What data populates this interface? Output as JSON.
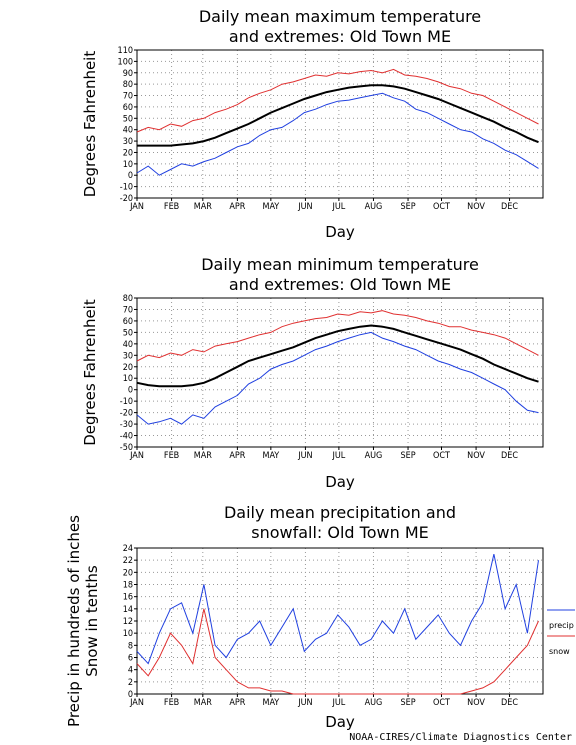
{
  "chart_data": [
    {
      "type": "line",
      "title": [
        "Daily mean maximum temperature",
        "and extremes: Old Town ME"
      ],
      "xlabel": "Day",
      "ylabel": [
        "Degrees Fahrenheit"
      ],
      "x": [
        1,
        11,
        21,
        31,
        41,
        51,
        61,
        71,
        81,
        91,
        101,
        111,
        121,
        131,
        141,
        151,
        161,
        171,
        181,
        191,
        201,
        211,
        221,
        231,
        241,
        251,
        261,
        271,
        281,
        291,
        301,
        311,
        321,
        331,
        341,
        351,
        361
      ],
      "xlim": [
        1,
        365
      ],
      "xticks": [
        {
          "value": 1,
          "label": "JAN"
        },
        {
          "value": 32,
          "label": "FEB"
        },
        {
          "value": 60,
          "label": "MAR"
        },
        {
          "value": 91,
          "label": "APR"
        },
        {
          "value": 121,
          "label": "MAY"
        },
        {
          "value": 152,
          "label": "JUN"
        },
        {
          "value": 182,
          "label": "JUL"
        },
        {
          "value": 213,
          "label": "AUG"
        },
        {
          "value": 244,
          "label": "SEP"
        },
        {
          "value": 274,
          "label": "OCT"
        },
        {
          "value": 305,
          "label": "NOV"
        },
        {
          "value": 335,
          "label": "DEC"
        }
      ],
      "ylim": [
        -20,
        110
      ],
      "yticks": [
        -20,
        -10,
        0,
        10,
        20,
        30,
        40,
        50,
        60,
        70,
        80,
        90,
        100,
        110
      ],
      "grid": true,
      "series": [
        {
          "color": "#e03030",
          "values": [
            38,
            42,
            40,
            45,
            43,
            48,
            50,
            55,
            58,
            62,
            68,
            72,
            75,
            80,
            82,
            85,
            88,
            87,
            90,
            89,
            91,
            92,
            90,
            93,
            88,
            87,
            85,
            82,
            78,
            76,
            72,
            70,
            65,
            60,
            55,
            50,
            45
          ]
        },
        {
          "color": "#000000",
          "values": [
            26,
            26,
            26,
            26,
            27,
            28,
            30,
            33,
            37,
            41,
            45,
            50,
            55,
            59,
            63,
            67,
            70,
            73,
            75,
            77,
            78,
            79,
            79,
            78,
            76,
            73,
            70,
            67,
            63,
            59,
            55,
            51,
            47,
            42,
            38,
            33,
            29
          ]
        },
        {
          "color": "#2040e0",
          "values": [
            2,
            8,
            0,
            5,
            10,
            8,
            12,
            15,
            20,
            25,
            28,
            35,
            40,
            42,
            48,
            55,
            58,
            62,
            65,
            66,
            68,
            70,
            72,
            68,
            65,
            58,
            55,
            50,
            45,
            40,
            38,
            32,
            28,
            22,
            18,
            12,
            6
          ]
        }
      ]
    },
    {
      "type": "line",
      "title": [
        "Daily mean minimum temperature",
        "and extremes: Old Town ME"
      ],
      "xlabel": "Day",
      "ylabel": [
        "Degrees Fahrenheit"
      ],
      "x": [
        1,
        11,
        21,
        31,
        41,
        51,
        61,
        71,
        81,
        91,
        101,
        111,
        121,
        131,
        141,
        151,
        161,
        171,
        181,
        191,
        201,
        211,
        221,
        231,
        241,
        251,
        261,
        271,
        281,
        291,
        301,
        311,
        321,
        331,
        341,
        351,
        361
      ],
      "xlim": [
        1,
        365
      ],
      "xticks": [
        {
          "value": 1,
          "label": "JAN"
        },
        {
          "value": 32,
          "label": "FEB"
        },
        {
          "value": 60,
          "label": "MAR"
        },
        {
          "value": 91,
          "label": "APR"
        },
        {
          "value": 121,
          "label": "MAY"
        },
        {
          "value": 152,
          "label": "JUN"
        },
        {
          "value": 182,
          "label": "JUL"
        },
        {
          "value": 213,
          "label": "AUG"
        },
        {
          "value": 244,
          "label": "SEP"
        },
        {
          "value": 274,
          "label": "OCT"
        },
        {
          "value": 305,
          "label": "NOV"
        },
        {
          "value": 335,
          "label": "DEC"
        }
      ],
      "ylim": [
        -50,
        80
      ],
      "yticks": [
        -50,
        -40,
        -30,
        -20,
        -10,
        0,
        10,
        20,
        30,
        40,
        50,
        60,
        70,
        80
      ],
      "grid": true,
      "series": [
        {
          "color": "#e03030",
          "values": [
            25,
            30,
            28,
            32,
            30,
            35,
            33,
            38,
            40,
            42,
            45,
            48,
            50,
            55,
            58,
            60,
            62,
            63,
            66,
            65,
            68,
            67,
            69,
            66,
            65,
            63,
            60,
            58,
            55,
            55,
            52,
            50,
            48,
            45,
            40,
            35,
            30
          ]
        },
        {
          "color": "#000000",
          "values": [
            6,
            4,
            3,
            3,
            3,
            4,
            6,
            10,
            15,
            20,
            25,
            28,
            31,
            34,
            37,
            41,
            45,
            48,
            51,
            53,
            55,
            56,
            55,
            53,
            50,
            47,
            44,
            41,
            38,
            35,
            31,
            27,
            22,
            18,
            14,
            10,
            7
          ]
        },
        {
          "color": "#2040e0",
          "values": [
            -22,
            -30,
            -28,
            -25,
            -30,
            -22,
            -25,
            -15,
            -10,
            -5,
            5,
            10,
            18,
            22,
            25,
            30,
            35,
            38,
            42,
            45,
            48,
            50,
            45,
            42,
            38,
            35,
            30,
            25,
            22,
            18,
            15,
            10,
            5,
            0,
            -10,
            -18,
            -20
          ]
        }
      ]
    },
    {
      "type": "line",
      "title": [
        "Daily mean precipitation and",
        "snowfall: Old Town ME"
      ],
      "xlabel": "Day",
      "ylabel": [
        "Precip in hundreds of inches",
        "Snow in tenths"
      ],
      "x": [
        1,
        11,
        21,
        31,
        41,
        51,
        61,
        71,
        81,
        91,
        101,
        111,
        121,
        131,
        141,
        151,
        161,
        171,
        181,
        191,
        201,
        211,
        221,
        231,
        241,
        251,
        261,
        271,
        281,
        291,
        301,
        311,
        321,
        331,
        341,
        351,
        361
      ],
      "xlim": [
        1,
        365
      ],
      "xticks": [
        {
          "value": 1,
          "label": "JAN"
        },
        {
          "value": 32,
          "label": "FEB"
        },
        {
          "value": 60,
          "label": "MAR"
        },
        {
          "value": 91,
          "label": "APR"
        },
        {
          "value": 121,
          "label": "MAY"
        },
        {
          "value": 152,
          "label": "JUN"
        },
        {
          "value": 182,
          "label": "JUL"
        },
        {
          "value": 213,
          "label": "AUG"
        },
        {
          "value": 244,
          "label": "SEP"
        },
        {
          "value": 274,
          "label": "OCT"
        },
        {
          "value": 305,
          "label": "NOV"
        },
        {
          "value": 335,
          "label": "DEC"
        }
      ],
      "ylim": [
        0,
        24
      ],
      "yticks": [
        0,
        2,
        4,
        6,
        8,
        10,
        12,
        14,
        16,
        18,
        20,
        22,
        24
      ],
      "grid": true,
      "legend": "right",
      "series": [
        {
          "name": "precip",
          "color": "#2040e0",
          "values": [
            7,
            5,
            10,
            14,
            15,
            10,
            18,
            8,
            6,
            9,
            10,
            12,
            8,
            11,
            14,
            7,
            9,
            10,
            13,
            11,
            8,
            9,
            12,
            10,
            14,
            9,
            11,
            13,
            10,
            8,
            12,
            15,
            23,
            14,
            18,
            10,
            22
          ]
        },
        {
          "name": "snow",
          "color": "#e03030",
          "values": [
            5,
            3,
            6,
            10,
            8,
            5,
            14,
            6,
            4,
            2,
            1,
            1,
            0.5,
            0.5,
            0,
            0,
            0,
            0,
            0,
            0,
            0,
            0,
            0,
            0,
            0,
            0,
            0,
            0,
            0,
            0,
            0.5,
            1,
            2,
            4,
            6,
            8,
            12
          ]
        }
      ]
    }
  ],
  "footer": "NOAA-CIRES/Climate Diagnostics Center"
}
